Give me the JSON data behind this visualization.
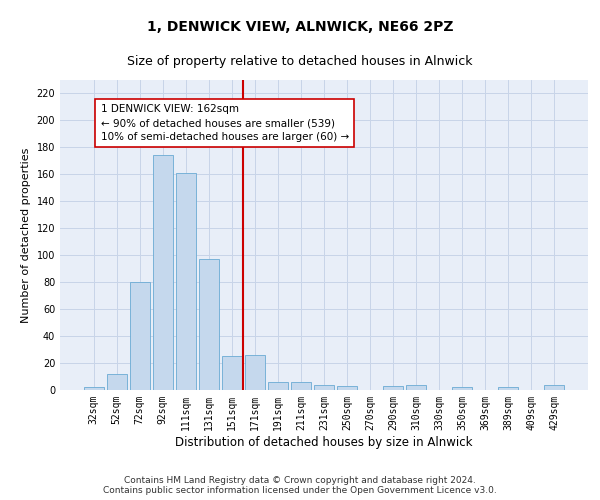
{
  "title": "1, DENWICK VIEW, ALNWICK, NE66 2PZ",
  "subtitle": "Size of property relative to detached houses in Alnwick",
  "xlabel": "Distribution of detached houses by size in Alnwick",
  "ylabel": "Number of detached properties",
  "categories": [
    "32sqm",
    "52sqm",
    "72sqm",
    "92sqm",
    "111sqm",
    "131sqm",
    "151sqm",
    "171sqm",
    "191sqm",
    "211sqm",
    "231sqm",
    "250sqm",
    "270sqm",
    "290sqm",
    "310sqm",
    "330sqm",
    "350sqm",
    "369sqm",
    "389sqm",
    "409sqm",
    "429sqm"
  ],
  "values": [
    2,
    12,
    80,
    174,
    161,
    97,
    25,
    26,
    6,
    6,
    4,
    3,
    0,
    3,
    4,
    0,
    2,
    0,
    2,
    0,
    4
  ],
  "bar_color": "#c5d8ed",
  "bar_edge_color": "#6aaad4",
  "vline_x": 6.5,
  "vline_color": "#cc0000",
  "annotation_text": "1 DENWICK VIEW: 162sqm\n← 90% of detached houses are smaller (539)\n10% of semi-detached houses are larger (60) →",
  "annotation_box_color": "#ffffff",
  "annotation_box_edge": "#cc0000",
  "ylim": [
    0,
    230
  ],
  "yticks": [
    0,
    20,
    40,
    60,
    80,
    100,
    120,
    140,
    160,
    180,
    200,
    220
  ],
  "grid_color": "#c8d4e8",
  "bg_color": "#e8eef8",
  "footer_line1": "Contains HM Land Registry data © Crown copyright and database right 2024.",
  "footer_line2": "Contains public sector information licensed under the Open Government Licence v3.0.",
  "title_fontsize": 10,
  "subtitle_fontsize": 9,
  "xlabel_fontsize": 8.5,
  "ylabel_fontsize": 8,
  "tick_fontsize": 7,
  "footer_fontsize": 6.5,
  "annot_fontsize": 7.5
}
